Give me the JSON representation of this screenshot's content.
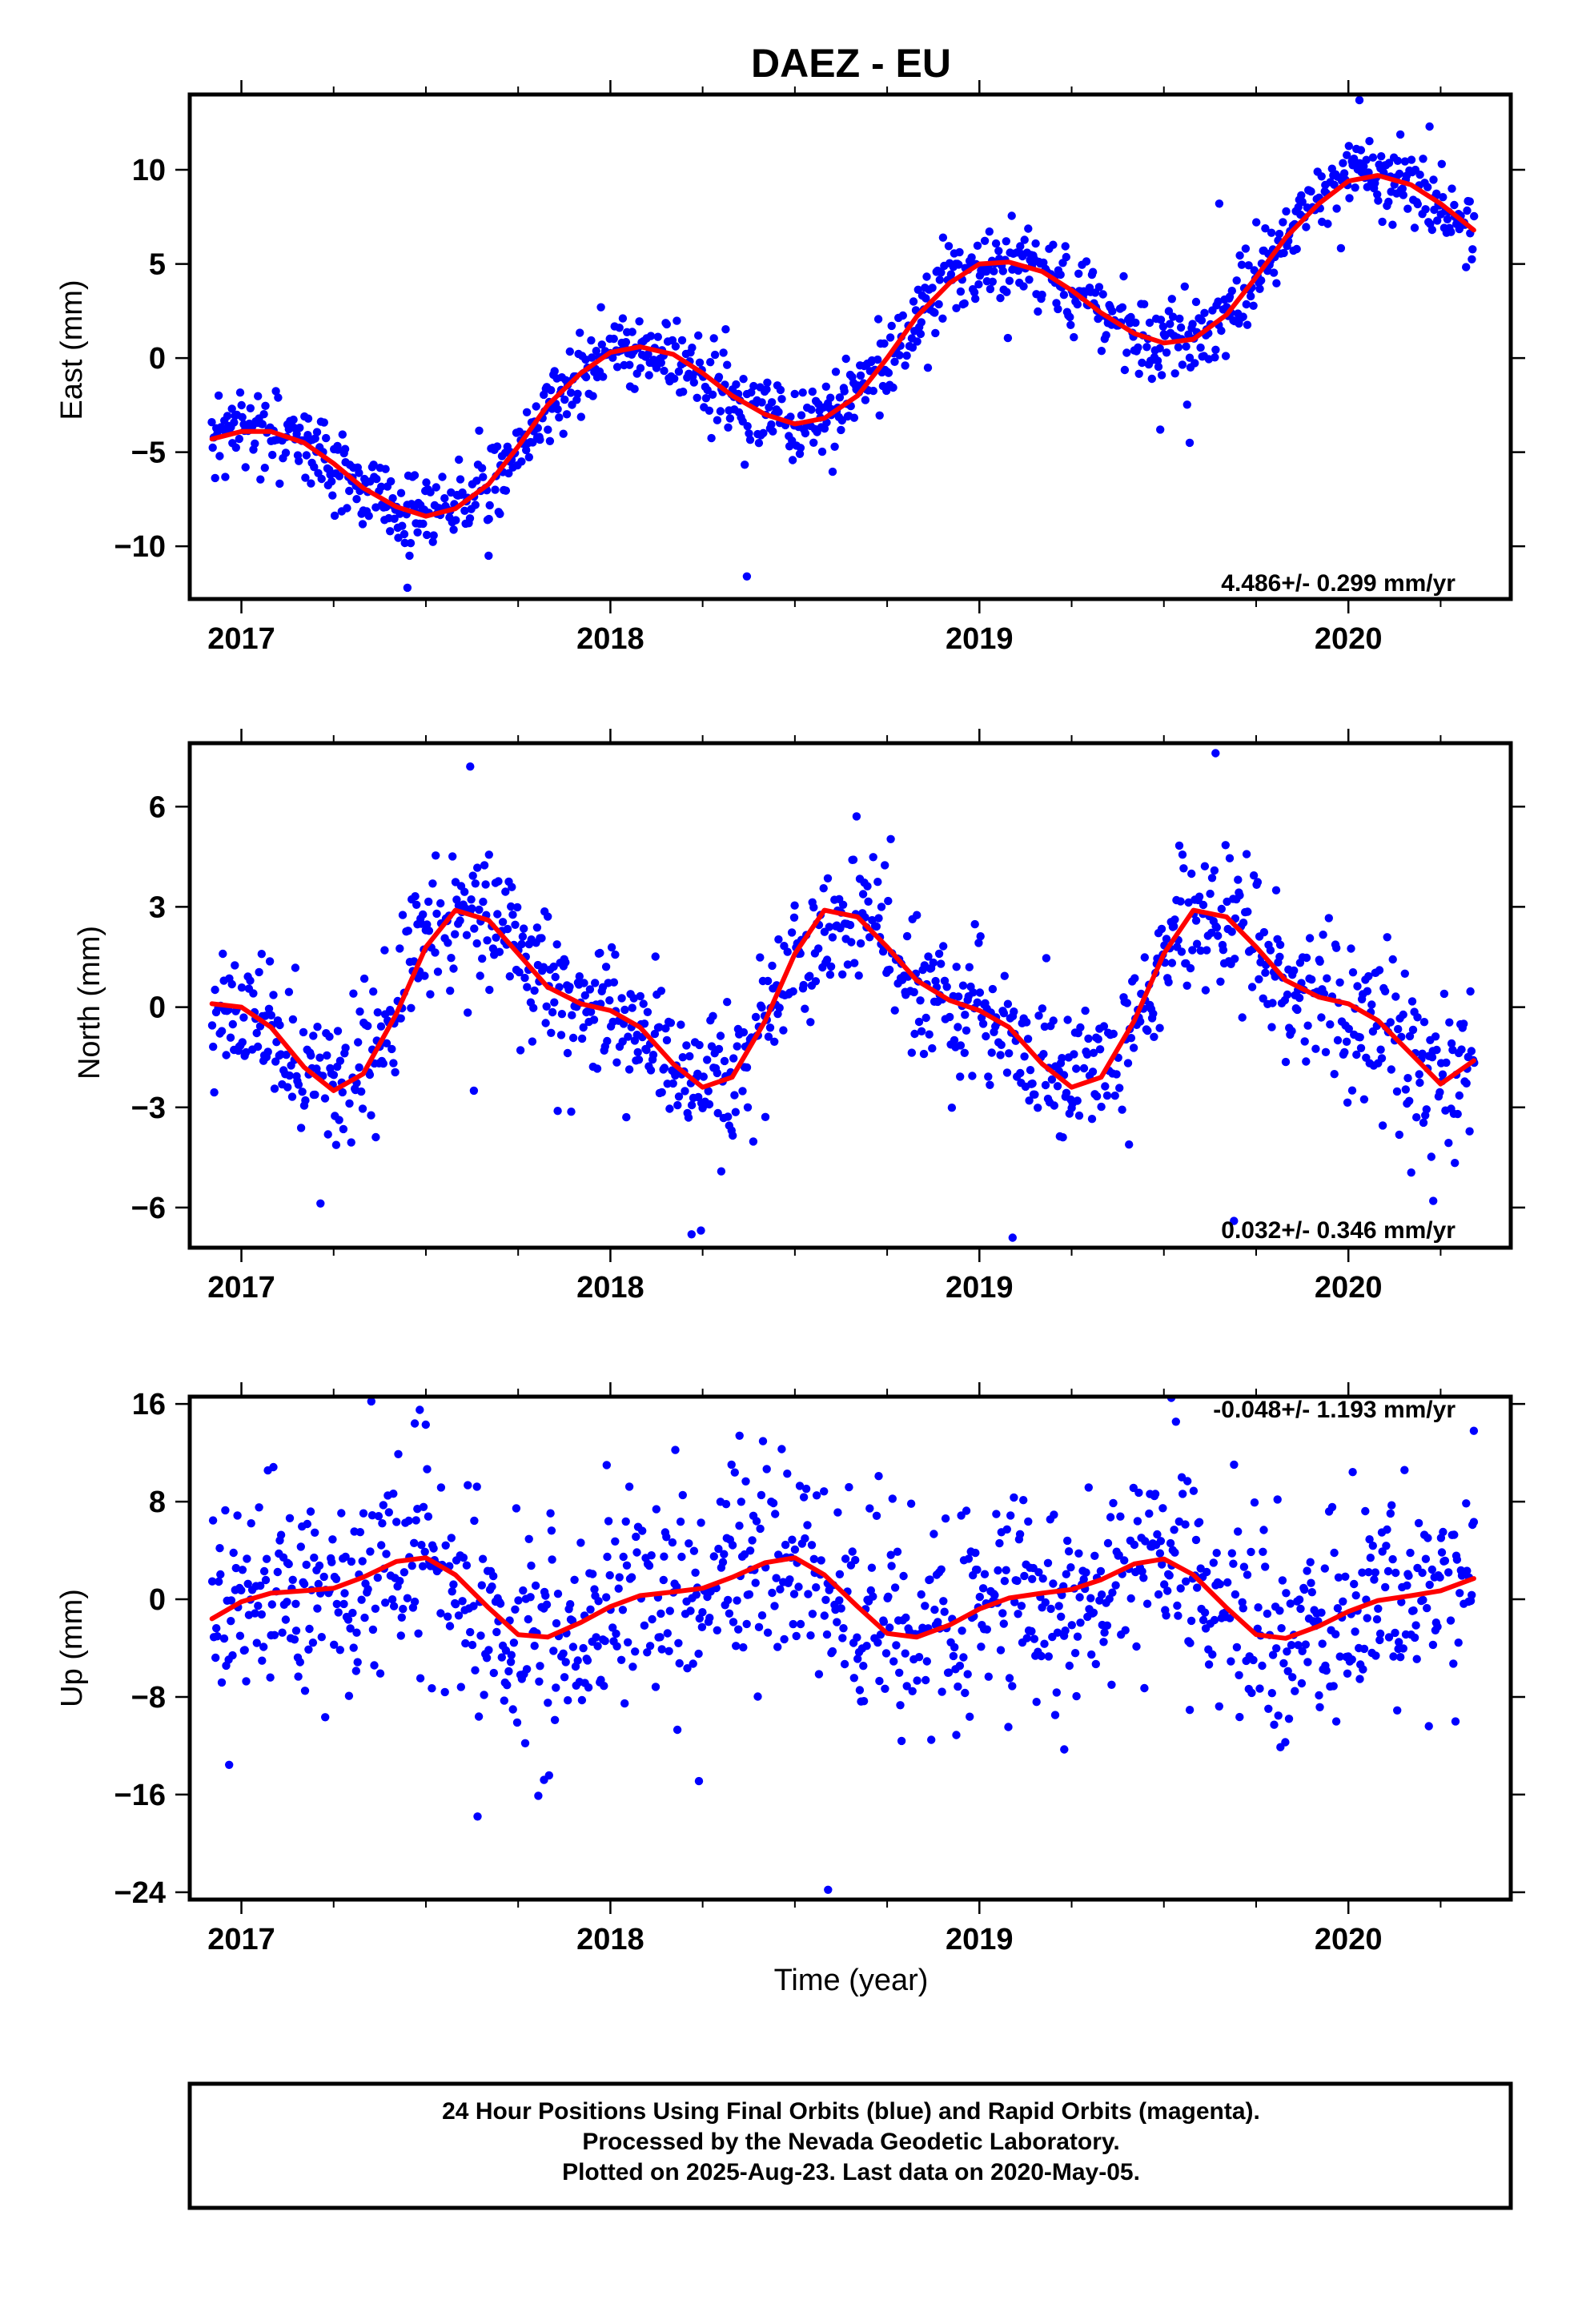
{
  "title": "DAEZ - EU",
  "xlabel": "Time (year)",
  "footer": {
    "line1": "24 Hour Positions Using Final Orbits (blue) and Rapid Orbits (magenta).",
    "line2": "Processed by the Nevada Geodetic Laboratory.",
    "line3": "Plotted on 2025-Aug-23. Last data on 2020-May-05."
  },
  "colors": {
    "points": "#0000ff",
    "fit": "#ff0000",
    "frame": "#000000"
  },
  "chart_data": [
    {
      "type": "scatter",
      "id": "east",
      "title": "DAEZ - EU",
      "ylabel": "East (mm)",
      "xlabel": "",
      "xlim": [
        2016.86,
        2020.44
      ],
      "ylim": [
        -12.8,
        14.0
      ],
      "yticks": [
        -10,
        -5,
        0,
        5,
        10
      ],
      "yticklabels": [
        "−10",
        "−5",
        "0",
        "5",
        "10"
      ],
      "xticks": [
        2017,
        2018,
        2019,
        2020
      ],
      "xticklabels": [
        "2017",
        "2018",
        "2019",
        "2020"
      ],
      "rate_label": "4.486+/- 0.299 mm/yr",
      "data_start": 2016.92,
      "data_end": 2020.34,
      "series": [
        {
          "role": "daily positions",
          "style": "points",
          "color": "#0000ff",
          "outliers": [
            [
              2017.45,
              -12.2
            ],
            [
              2017.67,
              -10.5
            ],
            [
              2018.37,
              -11.6
            ],
            [
              2019.57,
              -4.5
            ],
            [
              2019.49,
              -3.8
            ],
            [
              2020.03,
              13.7
            ],
            [
              2020.22,
              12.3
            ],
            [
              2019.65,
              8.2
            ]
          ]
        },
        {
          "role": "model fit",
          "style": "line",
          "color": "#ff0000",
          "points": [
            [
              2016.92,
              -4.3
            ],
            [
              2017.0,
              -3.9
            ],
            [
              2017.08,
              -3.9
            ],
            [
              2017.17,
              -4.5
            ],
            [
              2017.25,
              -5.6
            ],
            [
              2017.33,
              -6.9
            ],
            [
              2017.42,
              -7.9
            ],
            [
              2017.5,
              -8.4
            ],
            [
              2017.58,
              -8.0
            ],
            [
              2017.67,
              -6.7
            ],
            [
              2017.75,
              -4.7
            ],
            [
              2017.83,
              -2.5
            ],
            [
              2017.92,
              -0.8
            ],
            [
              2018.0,
              0.3
            ],
            [
              2018.08,
              0.6
            ],
            [
              2018.17,
              0.2
            ],
            [
              2018.25,
              -0.8
            ],
            [
              2018.33,
              -2.0
            ],
            [
              2018.42,
              -3.0
            ],
            [
              2018.5,
              -3.5
            ],
            [
              2018.58,
              -3.2
            ],
            [
              2018.67,
              -2.0
            ],
            [
              2018.75,
              0.0
            ],
            [
              2018.83,
              2.2
            ],
            [
              2018.92,
              4.0
            ],
            [
              2019.0,
              5.0
            ],
            [
              2019.08,
              5.1
            ],
            [
              2019.17,
              4.6
            ],
            [
              2019.25,
              3.6
            ],
            [
              2019.33,
              2.4
            ],
            [
              2019.42,
              1.3
            ],
            [
              2019.5,
              0.8
            ],
            [
              2019.58,
              1.0
            ],
            [
              2019.67,
              2.3
            ],
            [
              2019.75,
              4.3
            ],
            [
              2019.83,
              6.4
            ],
            [
              2019.92,
              8.2
            ],
            [
              2020.0,
              9.4
            ],
            [
              2020.08,
              9.7
            ],
            [
              2020.17,
              9.2
            ],
            [
              2020.25,
              8.2
            ],
            [
              2020.34,
              6.8
            ]
          ]
        }
      ]
    },
    {
      "type": "scatter",
      "id": "north",
      "ylabel": "North (mm)",
      "xlabel": "",
      "xlim": [
        2016.86,
        2020.44
      ],
      "ylim": [
        -7.2,
        7.9
      ],
      "yticks": [
        -6,
        -3,
        0,
        3,
        6
      ],
      "yticklabels": [
        "−6",
        "−3",
        "0",
        "3",
        "6"
      ],
      "xticks": [
        2017,
        2018,
        2019,
        2020
      ],
      "xticklabels": [
        "2017",
        "2018",
        "2019",
        "2020"
      ],
      "rate_label": "0.032+/- 0.346 mm/yr",
      "data_start": 2016.92,
      "data_end": 2020.34,
      "series": [
        {
          "role": "daily positions",
          "style": "points",
          "color": "#0000ff",
          "outliers": [
            [
              2017.62,
              7.2
            ],
            [
              2019.64,
              7.6
            ],
            [
              2018.22,
              -6.8
            ],
            [
              2019.09,
              -6.9
            ],
            [
              2020.23,
              -5.8
            ],
            [
              2019.69,
              -6.4
            ],
            [
              2017.63,
              -2.5
            ]
          ]
        },
        {
          "role": "model fit",
          "style": "line",
          "color": "#ff0000",
          "points": [
            [
              2016.92,
              0.1
            ],
            [
              2017.0,
              0.0
            ],
            [
              2017.08,
              -0.6
            ],
            [
              2017.17,
              -1.8
            ],
            [
              2017.25,
              -2.5
            ],
            [
              2017.33,
              -2.0
            ],
            [
              2017.42,
              -0.2
            ],
            [
              2017.5,
              1.8
            ],
            [
              2017.58,
              2.9
            ],
            [
              2017.67,
              2.6
            ],
            [
              2017.75,
              1.6
            ],
            [
              2017.83,
              0.6
            ],
            [
              2017.92,
              0.1
            ],
            [
              2018.0,
              -0.1
            ],
            [
              2018.08,
              -0.6
            ],
            [
              2018.17,
              -1.7
            ],
            [
              2018.25,
              -2.4
            ],
            [
              2018.33,
              -2.1
            ],
            [
              2018.42,
              -0.4
            ],
            [
              2018.5,
              1.6
            ],
            [
              2018.58,
              2.9
            ],
            [
              2018.67,
              2.7
            ],
            [
              2018.75,
              1.8
            ],
            [
              2018.83,
              0.8
            ],
            [
              2018.92,
              0.2
            ],
            [
              2019.0,
              -0.1
            ],
            [
              2019.08,
              -0.6
            ],
            [
              2019.17,
              -1.7
            ],
            [
              2019.25,
              -2.4
            ],
            [
              2019.33,
              -2.1
            ],
            [
              2019.42,
              -0.4
            ],
            [
              2019.5,
              1.6
            ],
            [
              2019.58,
              2.9
            ],
            [
              2019.67,
              2.7
            ],
            [
              2019.75,
              1.8
            ],
            [
              2019.83,
              0.8
            ],
            [
              2019.92,
              0.3
            ],
            [
              2020.0,
              0.1
            ],
            [
              2020.08,
              -0.4
            ],
            [
              2020.17,
              -1.4
            ],
            [
              2020.25,
              -2.3
            ],
            [
              2020.34,
              -1.6
            ]
          ]
        }
      ]
    },
    {
      "type": "scatter",
      "id": "up",
      "ylabel": "Up (mm)",
      "xlabel": "Time (year)",
      "xlim": [
        2016.86,
        2020.44
      ],
      "ylim": [
        -24.6,
        16.6
      ],
      "yticks": [
        -24,
        -16,
        -8,
        0,
        8,
        16
      ],
      "yticklabels": [
        "−24",
        "−16",
        "−8",
        "0",
        "8",
        "16"
      ],
      "xticks": [
        2017,
        2018,
        2019,
        2020
      ],
      "xticklabels": [
        "2017",
        "2018",
        "2019",
        "2020"
      ],
      "rate_label": "-0.048+/- 1.193 mm/yr",
      "data_start": 2016.92,
      "data_end": 2020.34,
      "series": [
        {
          "role": "daily positions",
          "style": "points",
          "color": "#0000ff",
          "outliers": [
            [
              2018.59,
              -23.8
            ],
            [
              2017.64,
              -17.8
            ],
            [
              2017.82,
              -14.8
            ],
            [
              2018.24,
              -14.9
            ],
            [
              2019.52,
              16.5
            ],
            [
              2019.23,
              -12.3
            ],
            [
              2017.47,
              14.4
            ],
            [
              2018.35,
              13.4
            ],
            [
              2020.34,
              13.8
            ],
            [
              2017.99,
              11.0
            ]
          ]
        },
        {
          "role": "model fit",
          "style": "line",
          "color": "#ff0000",
          "points": [
            [
              2016.92,
              -1.6
            ],
            [
              2017.0,
              -0.2
            ],
            [
              2017.08,
              0.5
            ],
            [
              2017.17,
              0.7
            ],
            [
              2017.25,
              0.9
            ],
            [
              2017.33,
              1.8
            ],
            [
              2017.42,
              3.1
            ],
            [
              2017.5,
              3.4
            ],
            [
              2017.58,
              2.0
            ],
            [
              2017.67,
              -0.7
            ],
            [
              2017.75,
              -2.9
            ],
            [
              2017.83,
              -3.1
            ],
            [
              2017.92,
              -1.9
            ],
            [
              2018.0,
              -0.6
            ],
            [
              2018.08,
              0.3
            ],
            [
              2018.17,
              0.6
            ],
            [
              2018.25,
              0.9
            ],
            [
              2018.33,
              1.8
            ],
            [
              2018.42,
              3.0
            ],
            [
              2018.5,
              3.4
            ],
            [
              2018.58,
              2.0
            ],
            [
              2018.67,
              -0.6
            ],
            [
              2018.75,
              -2.8
            ],
            [
              2018.83,
              -3.1
            ],
            [
              2018.92,
              -2.1
            ],
            [
              2019.0,
              -0.8
            ],
            [
              2019.08,
              0.1
            ],
            [
              2019.17,
              0.5
            ],
            [
              2019.25,
              0.8
            ],
            [
              2019.33,
              1.6
            ],
            [
              2019.42,
              2.9
            ],
            [
              2019.5,
              3.3
            ],
            [
              2019.58,
              2.0
            ],
            [
              2019.67,
              -0.7
            ],
            [
              2019.75,
              -2.9
            ],
            [
              2019.83,
              -3.2
            ],
            [
              2019.92,
              -2.2
            ],
            [
              2020.0,
              -1.0
            ],
            [
              2020.08,
              -0.1
            ],
            [
              2020.17,
              0.3
            ],
            [
              2020.25,
              0.7
            ],
            [
              2020.34,
              1.7
            ]
          ]
        }
      ]
    }
  ]
}
